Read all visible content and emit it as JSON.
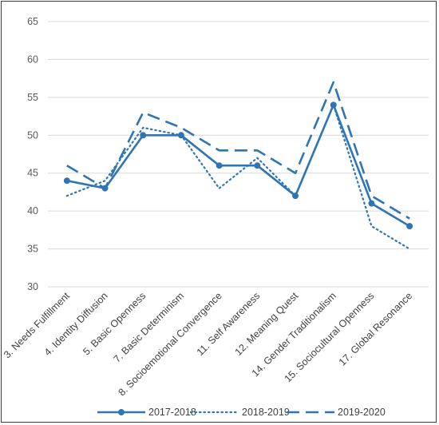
{
  "chart_data": {
    "type": "line",
    "categories": [
      "3. Needs Fulfillment",
      "4. Identity Diffusion",
      "5. Basic Openness",
      "7. Basic Determinism",
      "8. Socioemotional Convergence",
      "11. Self Awareness",
      "12. Meaning Quest",
      "14. Gender Traditionalism",
      "15. Sociocultural Openness",
      "17. Global Resonance"
    ],
    "series": [
      {
        "name": "2017-2018",
        "style": "solid-markers",
        "values": [
          44,
          43,
          50,
          50,
          46,
          46,
          42,
          54,
          41,
          38
        ]
      },
      {
        "name": "2018-2019",
        "style": "dotted",
        "values": [
          42,
          44,
          51,
          50,
          43,
          47,
          42,
          54,
          38,
          35
        ]
      },
      {
        "name": "2019-2020",
        "style": "dashed",
        "values": [
          46,
          43,
          53,
          51,
          48,
          48,
          45,
          57,
          42,
          39
        ]
      }
    ],
    "yticks": [
      30,
      35,
      40,
      45,
      50,
      55,
      60,
      65
    ],
    "ylim": [
      30,
      65
    ],
    "grid": true,
    "legend_position": "bottom",
    "line_color": "#2e75b6",
    "grid_color": "#d9d9d9"
  }
}
